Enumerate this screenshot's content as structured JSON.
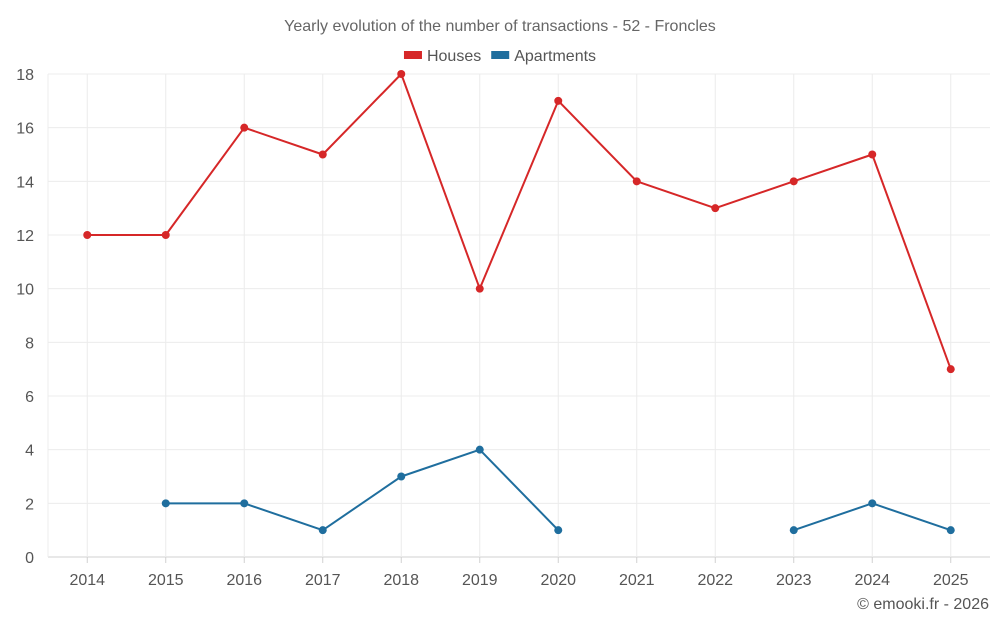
{
  "chart_data": {
    "type": "line",
    "title": "Yearly evolution of the number of transactions - 52 - Froncles",
    "categories": [
      "2014",
      "2015",
      "2016",
      "2017",
      "2018",
      "2019",
      "2020",
      "2021",
      "2022",
      "2023",
      "2024",
      "2025"
    ],
    "series": [
      {
        "name": "Houses",
        "color": "#d62728",
        "values": [
          12,
          12,
          16,
          15,
          18,
          10,
          17,
          14,
          13,
          14,
          15,
          7
        ]
      },
      {
        "name": "Apartments",
        "color": "#1f6e9e",
        "values": [
          null,
          2,
          2,
          1,
          3,
          4,
          1,
          null,
          null,
          1,
          2,
          1
        ]
      }
    ],
    "ylim": [
      0,
      18
    ],
    "yticks": [
      0,
      2,
      4,
      6,
      8,
      10,
      12,
      14,
      16,
      18
    ],
    "xlabel": "",
    "ylabel": "",
    "grid": true,
    "legend_position": "top-center"
  },
  "credit": "© emooki.fr - 2026"
}
